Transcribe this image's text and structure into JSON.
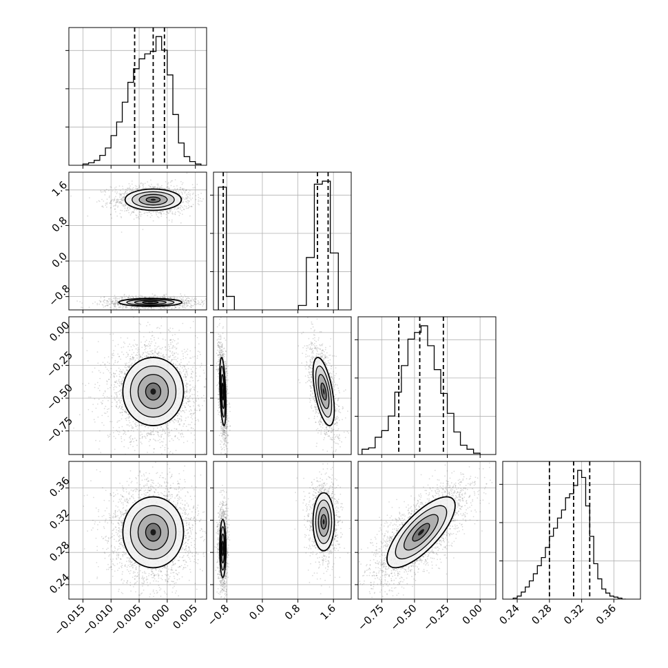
{
  "chart_data": {
    "type": "corner",
    "parameters": 4,
    "grid": true,
    "axes": [
      {
        "index": 0,
        "range": [
          -0.0175,
          0.007
        ],
        "ticks": [
          -0.015,
          -0.01,
          -0.005,
          0.0,
          0.005
        ],
        "tick_labels": [
          "−0.015",
          "−0.010",
          "−0.005",
          "0.000",
          "0.005"
        ]
      },
      {
        "index": 1,
        "range": [
          -1.1,
          2.0
        ],
        "ticks": [
          -0.8,
          0.0,
          0.8,
          1.6
        ],
        "tick_labels": [
          "−0.8",
          "0.0",
          "0.8",
          "1.6"
        ]
      },
      {
        "index": 2,
        "range": [
          -0.93,
          0.12
        ],
        "ticks": [
          -0.75,
          -0.5,
          -0.25,
          0.0
        ],
        "tick_labels": [
          "−0.75",
          "−0.50",
          "−0.25",
          "0.00"
        ]
      },
      {
        "index": 3,
        "range": [
          0.222,
          0.393
        ],
        "ticks": [
          0.24,
          0.28,
          0.32,
          0.36
        ],
        "tick_labels": [
          "0.24",
          "0.28",
          "0.32",
          "0.36"
        ]
      }
    ],
    "histograms": [
      {
        "param": 0,
        "bins": [
          -0.0145,
          -0.0135,
          -0.0125,
          -0.0115,
          -0.0105,
          -0.0095,
          -0.0085,
          -0.0075,
          -0.0065,
          -0.0055,
          -0.0045,
          -0.0035,
          -0.0025,
          -0.0015,
          -0.0005,
          0.0005,
          0.0015,
          0.0025,
          0.0035,
          0.0045,
          0.0055
        ],
        "counts": [
          1,
          2,
          4,
          8,
          14,
          24,
          35,
          51,
          67,
          78,
          86,
          90,
          92,
          104,
          93,
          73,
          41,
          18,
          7,
          3,
          1
        ],
        "quantiles": [
          -0.0058,
          -0.0025,
          -0.0005
        ]
      },
      {
        "param": 1,
        "bins": [
          -0.9,
          -0.72,
          0.9,
          1.08,
          1.26,
          1.44,
          1.62
        ],
        "counts": [
          82,
          9,
          3,
          35,
          84,
          86,
          38
        ],
        "quantiles": [
          -0.88,
          1.24,
          1.48
        ]
      },
      {
        "param": 2,
        "bins": [
          -0.875,
          -0.825,
          -0.775,
          -0.725,
          -0.675,
          -0.625,
          -0.575,
          -0.525,
          -0.475,
          -0.425,
          -0.375,
          -0.325,
          -0.275,
          -0.225,
          -0.175,
          -0.125,
          -0.075,
          -0.025
        ],
        "counts": [
          4,
          5,
          13,
          18,
          29,
          47,
          67,
          87,
          92,
          97,
          82,
          64,
          46,
          31,
          17,
          7,
          4,
          1
        ],
        "quantiles": [
          -0.62,
          -0.46,
          -0.28
        ]
      },
      {
        "param": 3,
        "bins": [
          0.2375,
          0.2425,
          0.2475,
          0.2525,
          0.2575,
          0.2625,
          0.2675,
          0.2725,
          0.2775,
          0.2825,
          0.2875,
          0.2925,
          0.2975,
          0.3025,
          0.3075,
          0.3125,
          0.3175,
          0.3225,
          0.3275,
          0.3325,
          0.3375,
          0.3425,
          0.3475,
          0.3525,
          0.3575,
          0.3625,
          0.3675,
          0.3725
        ],
        "counts": [
          1,
          3,
          7,
          12,
          18,
          25,
          33,
          41,
          51,
          62,
          70,
          80,
          88,
          100,
          104,
          112,
          127,
          120,
          92,
          62,
          35,
          20,
          10,
          6,
          3,
          2,
          1,
          0
        ],
        "quantiles": [
          0.28,
          0.31,
          0.33
        ]
      }
    ],
    "density_panels": [
      {
        "x": 0,
        "y": 1,
        "clusters": [
          {
            "cx": -0.0025,
            "cy": 1.38,
            "sx": 0.0025,
            "sy": 0.12,
            "rho": 0
          },
          {
            "cx": -0.003,
            "cy": -0.93,
            "sx": 0.0028,
            "sy": 0.045,
            "rho": 0
          }
        ]
      },
      {
        "x": 0,
        "y": 2,
        "clusters": [
          {
            "cx": -0.0025,
            "cy": -0.45,
            "sx": 0.0027,
            "sy": 0.13,
            "rho": 0
          }
        ]
      },
      {
        "x": 1,
        "y": 2,
        "clusters": [
          {
            "cx": -0.89,
            "cy": -0.45,
            "sx": 0.035,
            "sy": 0.13,
            "rho": -0.4
          },
          {
            "cx": 1.38,
            "cy": -0.45,
            "sx": 0.12,
            "sy": 0.13,
            "rho": -0.55
          }
        ]
      },
      {
        "x": 0,
        "y": 3,
        "clusters": [
          {
            "cx": -0.0025,
            "cy": 0.305,
            "sx": 0.0027,
            "sy": 0.022,
            "rho": 0
          }
        ]
      },
      {
        "x": 1,
        "y": 3,
        "clusters": [
          {
            "cx": -0.89,
            "cy": 0.285,
            "sx": 0.035,
            "sy": 0.018,
            "rho": 0
          },
          {
            "cx": 1.38,
            "cy": 0.318,
            "sx": 0.12,
            "sy": 0.018,
            "rho": 0
          }
        ]
      },
      {
        "x": 2,
        "y": 3,
        "clusters": [
          {
            "cx": -0.45,
            "cy": 0.305,
            "sx": 0.13,
            "sy": 0.022,
            "rho": 0.75
          }
        ]
      }
    ],
    "colors": {
      "line": "#000000",
      "points": "#555555",
      "grid": "#b0b0b0"
    }
  }
}
